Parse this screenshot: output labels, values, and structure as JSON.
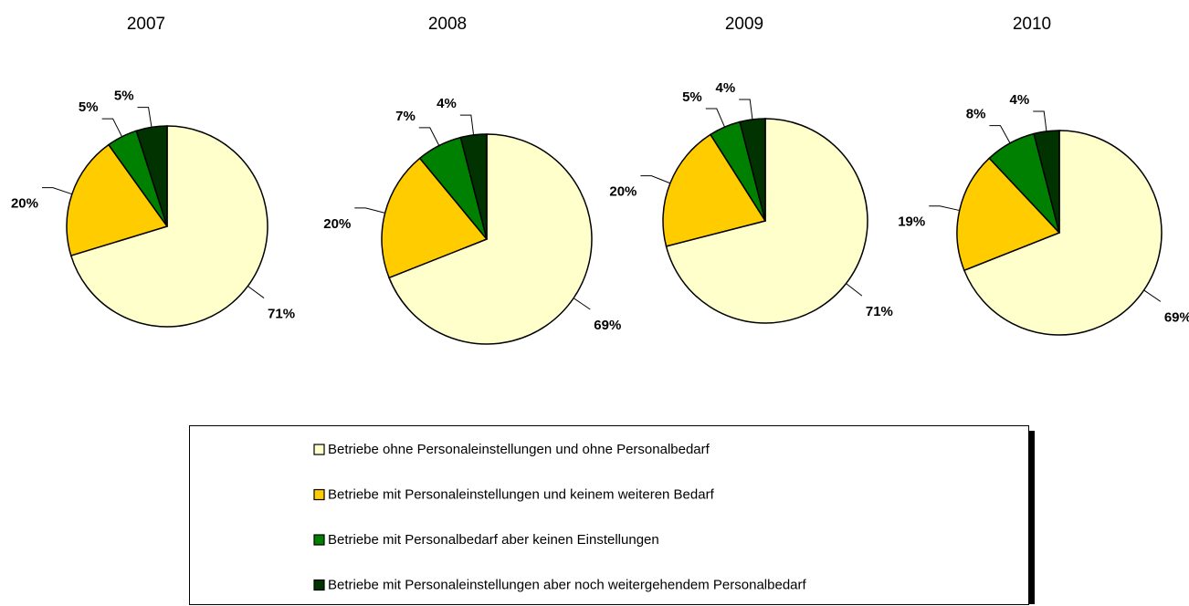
{
  "chart_data": [
    {
      "type": "pie",
      "title": "2007",
      "values": [
        71,
        20,
        5,
        5
      ],
      "value_labels": [
        "71%",
        "20%",
        "5%",
        "5%"
      ]
    },
    {
      "type": "pie",
      "title": "2008",
      "values": [
        69,
        20,
        7,
        4
      ],
      "value_labels": [
        "69%",
        "20%",
        "7%",
        "4%"
      ]
    },
    {
      "type": "pie",
      "title": "2009",
      "values": [
        71,
        20,
        5,
        4
      ],
      "value_labels": [
        "71%",
        "20%",
        "5%",
        "4%"
      ]
    },
    {
      "type": "pie",
      "title": "2010",
      "values": [
        69,
        19,
        8,
        4
      ],
      "value_labels": [
        "69%",
        "19%",
        "8%",
        "4%"
      ]
    }
  ],
  "legend": {
    "labels": [
      "Betriebe ohne Personaleinstellungen und ohne Personalbedarf",
      "Betriebe mit Personaleinstellungen und keinem weiteren Bedarf",
      "Betriebe mit Personalbedarf aber keinen Einstellungen",
      "Betriebe mit Personaleinstellungen aber noch weitergehendem Personalbedarf"
    ],
    "colors": [
      "#ffffcc",
      "#ffcc00",
      "#008000",
      "#003300"
    ]
  }
}
